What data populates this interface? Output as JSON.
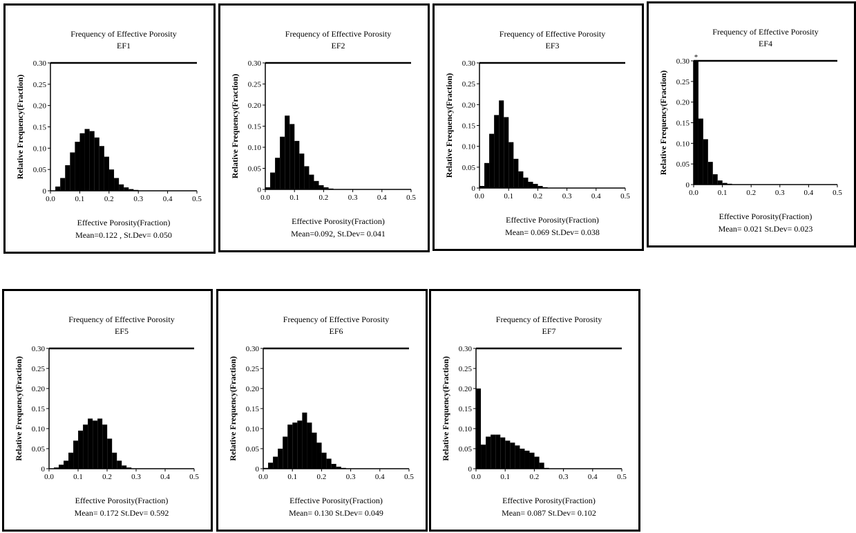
{
  "chart_data": [
    {
      "type": "bar",
      "title": "Frequency of Effective Porosity",
      "subtitle": "EF1",
      "xlabel": "Effective Porosity(Fraction)",
      "ylabel": "Relative Frequency(Fraction)",
      "stats": "Mean=0.122 , St.Dev= 0.050",
      "xlim": [
        0,
        0.5
      ],
      "ylim": [
        0,
        0.3
      ],
      "x_ticks": [
        "0.0",
        "0.1",
        "0.2",
        "0.3",
        "0.4",
        "0.5"
      ],
      "y_ticks": [
        "0",
        "0.05",
        "0.10",
        "0.15",
        "0.20",
        "0.25",
        "0.30"
      ],
      "grid": false,
      "bin_width": 0.0167,
      "values": [
        0,
        0.01,
        0.03,
        0.06,
        0.09,
        0.115,
        0.135,
        0.145,
        0.14,
        0.125,
        0.105,
        0.08,
        0.05,
        0.03,
        0.015,
        0.008,
        0.004,
        0.002
      ]
    },
    {
      "type": "bar",
      "title": "Frequency of Effective Porosity",
      "subtitle": "EF2",
      "xlabel": "Effective Porosity(Fraction)",
      "ylabel": "Relative Frequency(Fraction)",
      "stats": "Mean=0.092, St.Dev= 0.041",
      "xlim": [
        0,
        0.5
      ],
      "ylim": [
        0,
        0.3
      ],
      "x_ticks": [
        "0.0",
        "0.1",
        "0.2",
        "0.3",
        "0.4",
        "0.5"
      ],
      "y_ticks": [
        "0",
        "0.05",
        "0.10",
        "0.15",
        "0.20",
        "0.25",
        "0.30"
      ],
      "grid": false,
      "bin_width": 0.0167,
      "values": [
        0.005,
        0.04,
        0.075,
        0.125,
        0.175,
        0.155,
        0.115,
        0.085,
        0.055,
        0.035,
        0.02,
        0.01,
        0.005,
        0.002
      ]
    },
    {
      "type": "bar",
      "title": "Frequency of Effective Porosity",
      "subtitle": "EF3",
      "xlabel": "Effective Porosity(Fraction)",
      "ylabel": "Relative Frequency(Fraction)",
      "stats": "Mean= 0.069 St.Dev= 0.038",
      "xlim": [
        0,
        0.5
      ],
      "ylim": [
        0,
        0.3
      ],
      "x_ticks": [
        "0.0",
        "0.1",
        "0.2",
        "0.3",
        "0.4",
        "0.5"
      ],
      "y_ticks": [
        "0",
        "0.05",
        "0.10",
        "0.15",
        "0.20",
        "0.25",
        "0.30"
      ],
      "grid": false,
      "bin_width": 0.0167,
      "values": [
        0.005,
        0.06,
        0.13,
        0.175,
        0.21,
        0.17,
        0.11,
        0.07,
        0.04,
        0.025,
        0.015,
        0.01,
        0.005,
        0.002
      ]
    },
    {
      "type": "bar",
      "title": "Frequency of Effective Porosity",
      "subtitle": "EF4",
      "xlabel": "Effective Porosity(Fraction)",
      "ylabel": "Relative Frequency(Fraction)",
      "stats": "Mean= 0.021 St.Dev= 0.023",
      "xlim": [
        0,
        0.5
      ],
      "ylim": [
        0,
        0.3
      ],
      "x_ticks": [
        "0.0",
        "0.1",
        "0.2",
        "0.3",
        "0.4",
        "0.5"
      ],
      "y_ticks": [
        "0",
        "0.05",
        "0.10",
        "0.15",
        "0.20",
        "0.25",
        "0.30"
      ],
      "grid": false,
      "bin_width": 0.0167,
      "values": [
        0.3,
        0.16,
        0.11,
        0.055,
        0.025,
        0.01,
        0.004,
        0.002
      ],
      "annotation": "*"
    },
    {
      "type": "bar",
      "title": "Frequency of Effective Porosity",
      "subtitle": "EF5",
      "xlabel": "Effective Porosity(Fraction)",
      "ylabel": "Relative Frequency(Fraction)",
      "stats": "Mean= 0.172 St.Dev= 0.592",
      "xlim": [
        0,
        0.5
      ],
      "ylim": [
        0,
        0.3
      ],
      "x_ticks": [
        "0.0",
        "0.1",
        "0.2",
        "0.3",
        "0.4",
        "0.5"
      ],
      "y_ticks": [
        "0",
        "0.05",
        "0.10",
        "0.15",
        "0.20",
        "0.25",
        "0.30"
      ],
      "grid": false,
      "bin_width": 0.0167,
      "values": [
        0,
        0.003,
        0.01,
        0.02,
        0.04,
        0.07,
        0.095,
        0.11,
        0.125,
        0.12,
        0.125,
        0.11,
        0.075,
        0.04,
        0.02,
        0.008,
        0.003
      ]
    },
    {
      "type": "bar",
      "title": "Frequency of Effective Porosity",
      "subtitle": "EF6",
      "xlabel": "Effective Porosity(Fraction)",
      "ylabel": "Relative Frequency(Fraction)",
      "stats": "Mean= 0.130 St.Dev= 0.049",
      "xlim": [
        0,
        0.5
      ],
      "ylim": [
        0,
        0.3
      ],
      "x_ticks": [
        "0.0",
        "0.1",
        "0.2",
        "0.3",
        "0.4",
        "0.5"
      ],
      "y_ticks": [
        "0",
        "0.05",
        "0.10",
        "0.15",
        "0.20",
        "0.25",
        "0.30"
      ],
      "grid": false,
      "bin_width": 0.0167,
      "values": [
        0.002,
        0.015,
        0.03,
        0.05,
        0.08,
        0.11,
        0.115,
        0.12,
        0.14,
        0.115,
        0.09,
        0.065,
        0.04,
        0.025,
        0.012,
        0.005,
        0.002
      ]
    },
    {
      "type": "bar",
      "title": "Frequency of Effective Porosity",
      "subtitle": "EF7",
      "xlabel": "Effective Porosity(Fraction)",
      "ylabel": "Relative Frequency(Fraction)",
      "stats": "Mean= 0.087 St.Dev= 0.102",
      "xlim": [
        0,
        0.5
      ],
      "ylim": [
        0,
        0.3
      ],
      "x_ticks": [
        "0.0",
        "0.1",
        "0.2",
        "0.3",
        "0.4",
        "0.5"
      ],
      "y_ticks": [
        "0",
        "0.05",
        "0.10",
        "0.15",
        "0.20",
        "0.25",
        "0.30"
      ],
      "grid": false,
      "bin_width": 0.0167,
      "values": [
        0.2,
        0.06,
        0.08,
        0.085,
        0.085,
        0.078,
        0.07,
        0.065,
        0.058,
        0.05,
        0.045,
        0.04,
        0.03,
        0.015,
        0.002
      ]
    }
  ]
}
